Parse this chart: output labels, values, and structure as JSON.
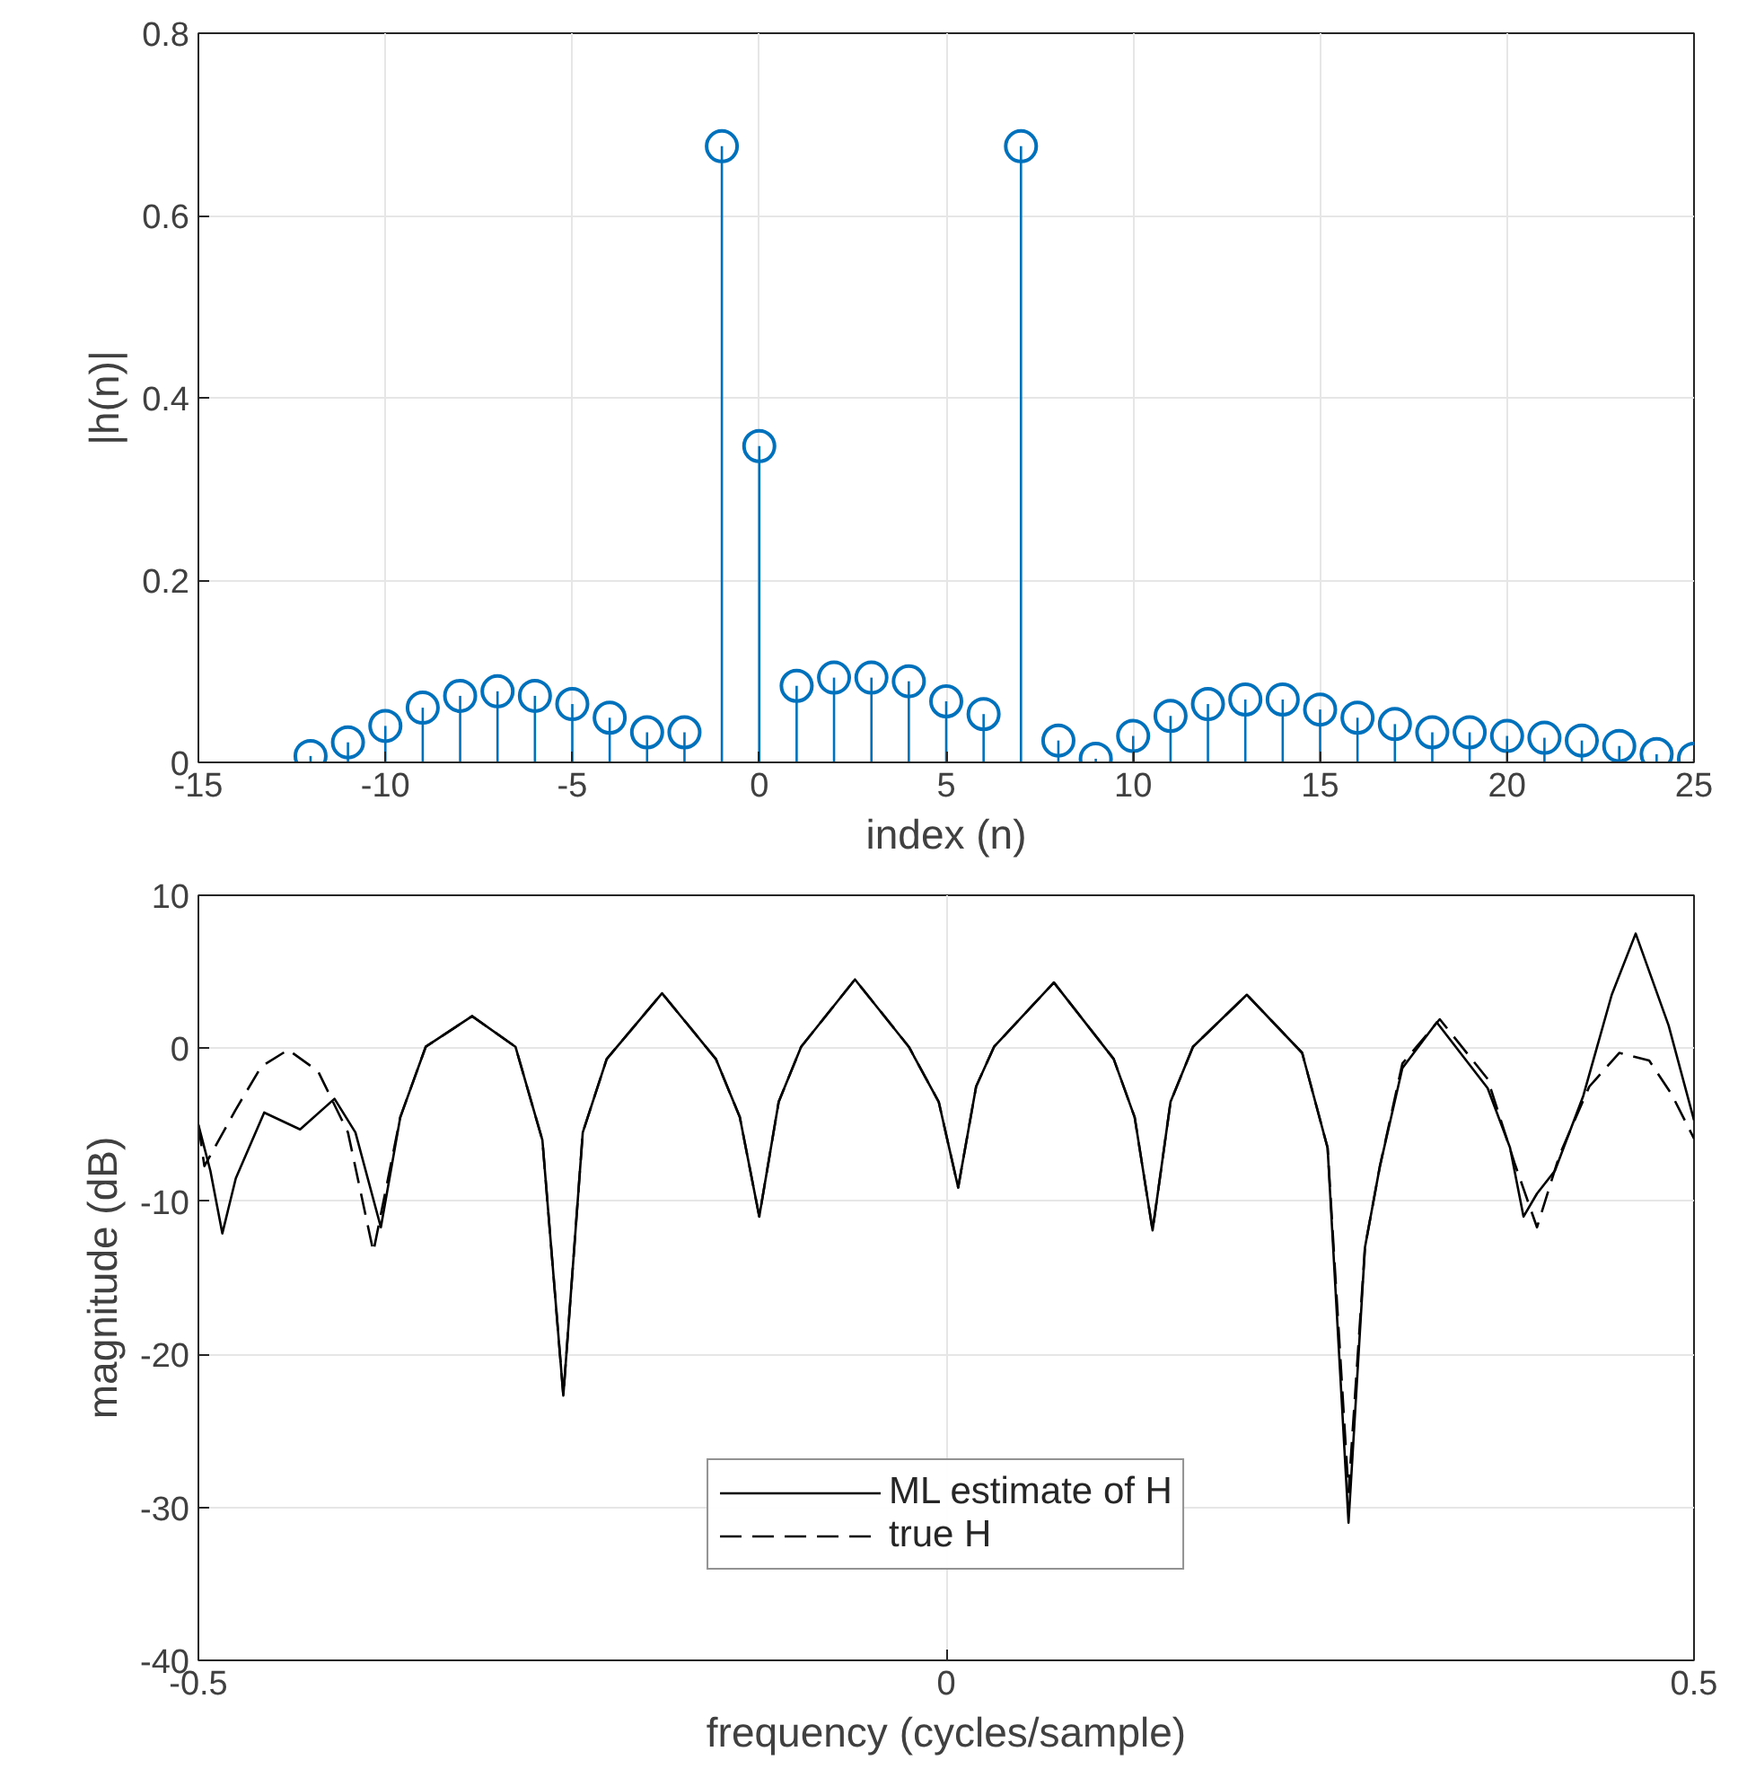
{
  "chart_data": [
    {
      "type": "lollipop",
      "xlabel": "index (n)",
      "ylabel": "|h(n)|",
      "color": "#0072bd",
      "marker": "circle",
      "grid": true,
      "x": [
        -12,
        -11,
        -10,
        -9,
        -8,
        -7,
        -6,
        -5,
        -4,
        -3,
        -2,
        -1,
        0,
        1,
        2,
        3,
        4,
        5,
        6,
        7,
        8,
        9,
        10,
        11,
        12,
        13,
        14,
        15,
        16,
        17,
        18,
        19,
        20,
        21,
        22,
        23,
        24,
        25
      ],
      "values": [
        0.007,
        0.022,
        0.04,
        0.06,
        0.073,
        0.078,
        0.073,
        0.064,
        0.049,
        0.033,
        0.033,
        0.676,
        0.347,
        0.084,
        0.093,
        0.093,
        0.089,
        0.067,
        0.053,
        0.676,
        0.024,
        0.004,
        0.029,
        0.051,
        0.064,
        0.069,
        0.069,
        0.058,
        0.049,
        0.042,
        0.033,
        0.033,
        0.029,
        0.027,
        0.024,
        0.018,
        0.009,
        0.004
      ],
      "xlim": [
        -15,
        25
      ],
      "xticks": [
        -15,
        -10,
        -5,
        0,
        5,
        10,
        15,
        20,
        25
      ],
      "ylim": [
        0,
        0.8
      ],
      "yticks": [
        0,
        0.2,
        0.4,
        0.6,
        0.8
      ]
    },
    {
      "type": "line",
      "xlabel": "frequency (cycles/sample)",
      "ylabel": "magnitude (dB)",
      "grid": true,
      "legend": "bottom",
      "xlim": [
        -0.5,
        0.5
      ],
      "xticks": [
        -0.5,
        0,
        0.5
      ],
      "ylim": [
        -40,
        10
      ],
      "yticks": [
        -40,
        -30,
        -20,
        -10,
        0,
        10
      ],
      "series": [
        {
          "name": "ML estimate of H",
          "color": "#000000",
          "line_style": "solid",
          "x": [
            -0.5,
            -0.492,
            -0.484,
            -0.475,
            -0.456,
            -0.432,
            -0.409,
            -0.395,
            -0.378,
            -0.365,
            -0.348,
            -0.317,
            -0.288,
            -0.27,
            -0.256,
            -0.243,
            -0.227,
            -0.19,
            -0.154,
            -0.138,
            -0.125,
            -0.112,
            -0.097,
            -0.061,
            -0.025,
            -0.005,
            0.008,
            0.02,
            0.032,
            0.072,
            0.112,
            0.126,
            0.138,
            0.15,
            0.165,
            0.201,
            0.238,
            0.255,
            0.269,
            0.28,
            0.29,
            0.305,
            0.328,
            0.362,
            0.377,
            0.386,
            0.395,
            0.407,
            0.426,
            0.445,
            0.461,
            0.483,
            0.5
          ],
          "values": [
            -5.0,
            -8.0,
            -12.1,
            -8.5,
            -4.2,
            -5.3,
            -3.3,
            -5.5,
            -11.7,
            -4.5,
            0.1,
            2.1,
            0.1,
            -6.0,
            -22.7,
            -5.5,
            -0.7,
            3.6,
            -0.7,
            -4.5,
            -11.0,
            -3.5,
            0.1,
            4.5,
            0.1,
            -3.5,
            -9.1,
            -2.5,
            0.1,
            4.3,
            -0.7,
            -4.5,
            -11.9,
            -3.5,
            0.1,
            3.5,
            -0.3,
            -6.5,
            -31.0,
            -13.0,
            -7.7,
            -1.3,
            1.7,
            -2.6,
            -6.5,
            -11.0,
            -9.5,
            -8.0,
            -3.1,
            3.5,
            7.5,
            1.5,
            -4.7
          ]
        },
        {
          "name": "true H",
          "color": "#000000",
          "line_style": "dashed",
          "x": [
            -0.5,
            -0.496,
            -0.475,
            -0.458,
            -0.44,
            -0.42,
            -0.4,
            -0.383,
            -0.365,
            -0.348,
            -0.317,
            -0.288,
            -0.27,
            -0.256,
            -0.243,
            -0.227,
            -0.19,
            -0.154,
            -0.138,
            -0.125,
            -0.112,
            -0.097,
            -0.061,
            -0.025,
            -0.005,
            0.008,
            0.02,
            0.032,
            0.072,
            0.112,
            0.126,
            0.138,
            0.15,
            0.165,
            0.201,
            0.238,
            0.255,
            0.269,
            0.28,
            0.29,
            0.305,
            0.33,
            0.362,
            0.38,
            0.395,
            0.41,
            0.43,
            0.45,
            0.47,
            0.485,
            0.5
          ],
          "values": [
            -5.0,
            -7.7,
            -4.0,
            -1.2,
            -0.1,
            -1.5,
            -5.5,
            -13.3,
            -4.5,
            0.1,
            2.1,
            0.1,
            -6.0,
            -22.7,
            -5.5,
            -0.7,
            3.6,
            -0.7,
            -4.5,
            -11.0,
            -3.5,
            0.1,
            4.5,
            0.1,
            -3.5,
            -9.1,
            -2.5,
            0.1,
            4.3,
            -0.7,
            -4.5,
            -11.9,
            -3.5,
            0.1,
            3.5,
            -0.3,
            -6.5,
            -29.0,
            -13.0,
            -7.7,
            -1.0,
            1.9,
            -2.0,
            -7.5,
            -11.7,
            -7.0,
            -2.5,
            -0.3,
            -0.8,
            -3.0,
            -5.9
          ]
        }
      ]
    }
  ]
}
